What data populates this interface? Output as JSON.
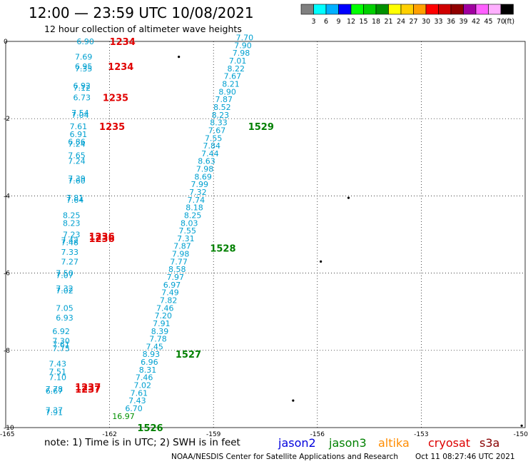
{
  "header": {
    "title": "12:00 — 23:59 UTC 10/08/2021",
    "subtitle": "12 hour collection of altimeter wave heights"
  },
  "scale": {
    "unit": "(ft)",
    "ticks": [
      "3",
      "6",
      "9",
      "12",
      "15",
      "18",
      "21",
      "24",
      "27",
      "30",
      "33",
      "36",
      "39",
      "42",
      "45",
      "70"
    ],
    "colors": [
      "#808080",
      "#00ffff",
      "#00b0ff",
      "#0000ff",
      "#00ff00",
      "#00d000",
      "#009000",
      "#ffff00",
      "#ffd000",
      "#ffa000",
      "#ff0000",
      "#d00000",
      "#900000",
      "#a000a0",
      "#ff60ff",
      "#ffb0ff",
      "#000000"
    ]
  },
  "map": {
    "lon_labels": [
      "-165",
      "-162",
      "-159",
      "-156",
      "-153",
      "-150"
    ],
    "lat_labels": [
      "0",
      "-2",
      "-4",
      "-6",
      "-8",
      "-10"
    ],
    "colors": {
      "obs": "#00a0d0",
      "obs_last": "#009000",
      "time_jason3": "#008000",
      "time_cryosat": "#e00000"
    },
    "times_jason3": [
      {
        "t": "1529",
        "lon": -158.0,
        "lat": -2.2
      },
      {
        "t": "1528",
        "lon": -159.1,
        "lat": -5.35
      },
      {
        "t": "1527",
        "lon": -160.1,
        "lat": -8.1
      },
      {
        "t": "1526",
        "lon": -161.2,
        "lat": -10.0
      }
    ],
    "times_cryosat": [
      {
        "t": "1234",
        "lon": -162.0,
        "lat": 0.0
      },
      {
        "t": "1234",
        "lon": -162.05,
        "lat": -0.65
      },
      {
        "t": "1235",
        "lon": -162.2,
        "lat": -1.45
      },
      {
        "t": "1235",
        "lon": -162.3,
        "lat": -2.2
      },
      {
        "t": "1236",
        "lon": -162.6,
        "lat": -5.05
      },
      {
        "t": "1236",
        "lon": -162.6,
        "lat": -5.1
      },
      {
        "t": "1237",
        "lon": -163.0,
        "lat": -8.95
      },
      {
        "t": "1237",
        "lon": -163.0,
        "lat": -9.0
      }
    ],
    "track_jason3": [
      {
        "v": "7.70",
        "lon": -158.1,
        "lat": 0.1
      },
      {
        "v": "7.90",
        "lon": -158.15,
        "lat": -0.1
      },
      {
        "v": "7.98",
        "lon": -158.2,
        "lat": -0.3
      },
      {
        "v": "7.01",
        "lon": -158.3,
        "lat": -0.5
      },
      {
        "v": "8.22",
        "lon": -158.35,
        "lat": -0.7
      },
      {
        "v": "7.67",
        "lon": -158.45,
        "lat": -0.9
      },
      {
        "v": "8.21",
        "lon": -158.5,
        "lat": -1.1
      },
      {
        "v": "8.90",
        "lon": -158.6,
        "lat": -1.3
      },
      {
        "v": "7.87",
        "lon": -158.7,
        "lat": -1.5
      },
      {
        "v": "8.52",
        "lon": -158.75,
        "lat": -1.7
      },
      {
        "v": "8.23",
        "lon": -158.8,
        "lat": -1.9
      },
      {
        "v": "8.33",
        "lon": -158.85,
        "lat": -2.1
      },
      {
        "v": "7.67",
        "lon": -158.9,
        "lat": -2.3
      },
      {
        "v": "7.55",
        "lon": -159.0,
        "lat": -2.5
      },
      {
        "v": "7.84",
        "lon": -159.05,
        "lat": -2.7
      },
      {
        "v": "7.44",
        "lon": -159.1,
        "lat": -2.9
      },
      {
        "v": "8.63",
        "lon": -159.2,
        "lat": -3.1
      },
      {
        "v": "7.98",
        "lon": -159.25,
        "lat": -3.3
      },
      {
        "v": "8.69",
        "lon": -159.3,
        "lat": -3.5
      },
      {
        "v": "7.99",
        "lon": -159.4,
        "lat": -3.7
      },
      {
        "v": "7.32",
        "lon": -159.45,
        "lat": -3.9
      },
      {
        "v": "7.74",
        "lon": -159.5,
        "lat": -4.1
      },
      {
        "v": "8.18",
        "lon": -159.55,
        "lat": -4.3
      },
      {
        "v": "8.25",
        "lon": -159.6,
        "lat": -4.5
      },
      {
        "v": "8.03",
        "lon": -159.7,
        "lat": -4.7
      },
      {
        "v": "7.55",
        "lon": -159.75,
        "lat": -4.9
      },
      {
        "v": "7.31",
        "lon": -159.8,
        "lat": -5.1
      },
      {
        "v": "7.87",
        "lon": -159.9,
        "lat": -5.3
      },
      {
        "v": "7.98",
        "lon": -159.95,
        "lat": -5.5
      },
      {
        "v": "7.77",
        "lon": -160.0,
        "lat": -5.7
      },
      {
        "v": "8.58",
        "lon": -160.05,
        "lat": -5.9
      },
      {
        "v": "7.97",
        "lon": -160.1,
        "lat": -6.1
      },
      {
        "v": "6.97",
        "lon": -160.2,
        "lat": -6.3
      },
      {
        "v": "7.49",
        "lon": -160.25,
        "lat": -6.5
      },
      {
        "v": "7.82",
        "lon": -160.3,
        "lat": -6.7
      },
      {
        "v": "7.46",
        "lon": -160.4,
        "lat": -6.9
      },
      {
        "v": "7.20",
        "lon": -160.45,
        "lat": -7.1
      },
      {
        "v": "7.91",
        "lon": -160.5,
        "lat": -7.3
      },
      {
        "v": "8.39",
        "lon": -160.55,
        "lat": -7.5
      },
      {
        "v": "7.78",
        "lon": -160.6,
        "lat": -7.7
      },
      {
        "v": "7.45",
        "lon": -160.7,
        "lat": -7.9
      },
      {
        "v": "8.93",
        "lon": -160.8,
        "lat": -8.1
      },
      {
        "v": "6.96",
        "lon": -160.85,
        "lat": -8.3
      },
      {
        "v": "8.31",
        "lon": -160.9,
        "lat": -8.5
      },
      {
        "v": "7.46",
        "lon": -161.0,
        "lat": -8.7
      },
      {
        "v": "7.02",
        "lon": -161.05,
        "lat": -8.9
      },
      {
        "v": "7.61",
        "lon": -161.15,
        "lat": -9.1
      },
      {
        "v": "7.43",
        "lon": -161.2,
        "lat": -9.3
      },
      {
        "v": "6.70",
        "lon": -161.3,
        "lat": -9.5
      },
      {
        "v": "16.97",
        "lon": -161.6,
        "lat": -9.7,
        "last": true
      }
    ],
    "track_cryosat": [
      {
        "v": "6.90",
        "lon": -162.7,
        "lat": 0.0
      },
      {
        "v": "7.69",
        "lon": -162.75,
        "lat": -0.4
      },
      {
        "v": "6.95",
        "lon": -162.75,
        "lat": -0.65
      },
      {
        "v": "7.35",
        "lon": -162.75,
        "lat": -0.7
      },
      {
        "v": "6.92",
        "lon": -162.8,
        "lat": -1.15
      },
      {
        "v": "7.12",
        "lon": -162.8,
        "lat": -1.2
      },
      {
        "v": "6.73",
        "lon": -162.8,
        "lat": -1.45
      },
      {
        "v": "7.54",
        "lon": -162.85,
        "lat": -1.85
      },
      {
        "v": "7.04",
        "lon": -162.85,
        "lat": -1.9
      },
      {
        "v": "7.61",
        "lon": -162.9,
        "lat": -2.2
      },
      {
        "v": "6.91",
        "lon": -162.9,
        "lat": -2.4
      },
      {
        "v": "6.86",
        "lon": -162.95,
        "lat": -2.6
      },
      {
        "v": "7.24",
        "lon": -162.95,
        "lat": -2.65
      },
      {
        "v": "7.65",
        "lon": -162.95,
        "lat": -2.95
      },
      {
        "v": "7.24",
        "lon": -162.95,
        "lat": -3.1
      },
      {
        "v": "7.39",
        "lon": -162.95,
        "lat": -3.55
      },
      {
        "v": "7.60",
        "lon": -162.95,
        "lat": -3.6
      },
      {
        "v": "7.81",
        "lon": -163.0,
        "lat": -4.05
      },
      {
        "v": "7.64",
        "lon": -163.0,
        "lat": -4.1
      },
      {
        "v": "8.25",
        "lon": -163.1,
        "lat": -4.5
      },
      {
        "v": "8.23",
        "lon": -163.1,
        "lat": -4.7
      },
      {
        "v": "7.23",
        "lon": -163.1,
        "lat": -5.0
      },
      {
        "v": "7.42",
        "lon": -163.15,
        "lat": -5.15
      },
      {
        "v": "7.48",
        "lon": -163.15,
        "lat": -5.2
      },
      {
        "v": "7.33",
        "lon": -163.15,
        "lat": -5.45
      },
      {
        "v": "7.27",
        "lon": -163.15,
        "lat": -5.7
      },
      {
        "v": "7.50",
        "lon": -163.3,
        "lat": -6.0
      },
      {
        "v": "7.07",
        "lon": -163.3,
        "lat": -6.05
      },
      {
        "v": "7.32",
        "lon": -163.3,
        "lat": -6.4
      },
      {
        "v": "7.02",
        "lon": -163.3,
        "lat": -6.45
      },
      {
        "v": "7.05",
        "lon": -163.3,
        "lat": -6.9
      },
      {
        "v": "6.93",
        "lon": -163.3,
        "lat": -7.15
      },
      {
        "v": "6.92",
        "lon": -163.4,
        "lat": -7.5
      },
      {
        "v": "7.30",
        "lon": -163.4,
        "lat": -7.75
      },
      {
        "v": "7.61",
        "lon": -163.4,
        "lat": -7.85
      },
      {
        "v": "7.75",
        "lon": -163.4,
        "lat": -7.95
      },
      {
        "v": "7.43",
        "lon": -163.5,
        "lat": -8.35
      },
      {
        "v": "7.51",
        "lon": -163.5,
        "lat": -8.55
      },
      {
        "v": "7.10",
        "lon": -163.5,
        "lat": -8.7
      },
      {
        "v": "7.78",
        "lon": -163.6,
        "lat": -9.0
      },
      {
        "v": "6.67",
        "lon": -163.6,
        "lat": -9.05
      },
      {
        "v": "7.37",
        "lon": -163.6,
        "lat": -9.55
      },
      {
        "v": "7.91",
        "lon": -163.6,
        "lat": -9.6
      }
    ],
    "islands": [
      {
        "name": "island-1",
        "lon": -160.0,
        "lat": -0.4
      },
      {
        "name": "island-2",
        "lon": -155.1,
        "lat": -4.05
      },
      {
        "name": "island-3",
        "lon": -155.9,
        "lat": -5.7
      },
      {
        "name": "island-4",
        "lon": -156.7,
        "lat": -9.3
      },
      {
        "name": "island-5",
        "lon": -150.1,
        "lat": -9.95
      }
    ]
  },
  "footer": {
    "note": "note:  1) Time is in UTC;  2) SWH is in feet",
    "satellites": [
      {
        "label": "jason2",
        "color": "#0000dd"
      },
      {
        "label": "jason3",
        "color": "#008000"
      },
      {
        "label": "altika",
        "color": "#ff8c00"
      },
      {
        "label": "cryosat",
        "color": "#dd0000"
      },
      {
        "label": "s3a",
        "color": "#880000"
      }
    ],
    "credit": "NOAA/NESDIS Center for Satellite Applications and Research",
    "timestamp": "Oct 11 08:27:46 UTC 2021"
  }
}
